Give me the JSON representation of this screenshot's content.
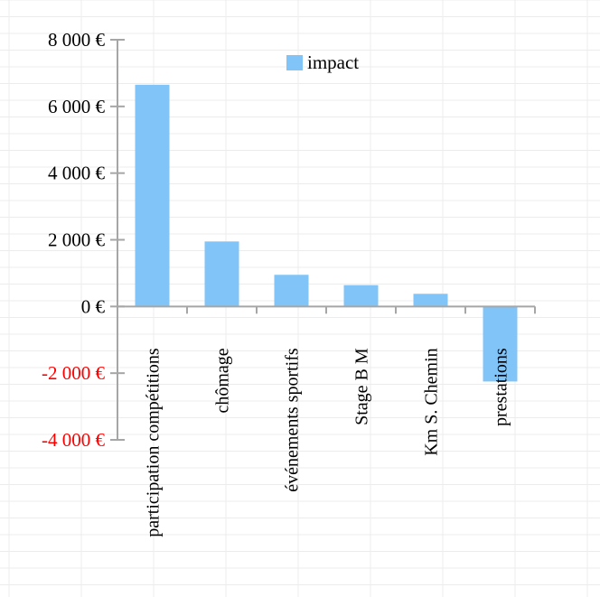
{
  "chart_data": {
    "type": "bar",
    "categories": [
      "participation compétitions",
      "chômage",
      "événements sportifs",
      "Stage B M",
      "Km S. Chemin",
      "prestations"
    ],
    "series": [
      {
        "name": "impact",
        "values": [
          6650,
          1950,
          950,
          640,
          380,
          -2250
        ]
      }
    ],
    "y_ticks": [
      {
        "value": 8000,
        "label": "8 000 €"
      },
      {
        "value": 6000,
        "label": "6 000 €"
      },
      {
        "value": 4000,
        "label": "4 000 €"
      },
      {
        "value": 2000,
        "label": "2 000 €"
      },
      {
        "value": 0,
        "label": "0 €"
      },
      {
        "value": -2000,
        "label": "-2 000 €"
      },
      {
        "value": -4000,
        "label": "-4 000 €"
      }
    ],
    "ylim": [
      -4000,
      8000
    ],
    "grid": true,
    "legend_position": "top-center",
    "colors": {
      "bar": "#80c4f8",
      "axis": "#a6a6a6",
      "grid": "#ececec",
      "positive_label": "#000000",
      "negative_label": "#ff0000"
    }
  }
}
